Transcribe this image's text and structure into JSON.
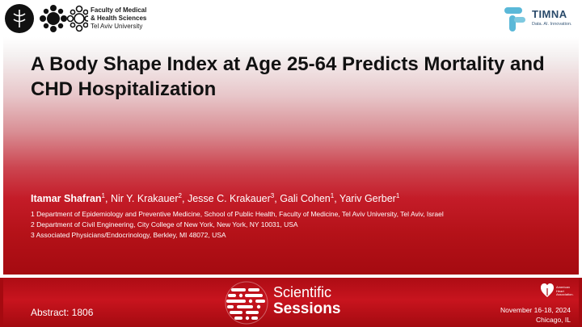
{
  "header": {
    "university_lines": [
      "Faculty of Medical",
      "& Health Sciences",
      "Tel Aviv University"
    ],
    "sponsor": {
      "name": "TIMNA",
      "tagline": "Data. AI. Innovation."
    }
  },
  "title": "A Body Shape Index at Age 25-64 Predicts Mortality and CHD Hospitalization",
  "authors": [
    {
      "name": "Itamar Shafran",
      "sup": "1",
      "bold": true
    },
    {
      "name": "Nir Y. Krakauer",
      "sup": "2",
      "bold": false
    },
    {
      "name": "Jesse C. Krakauer",
      "sup": "3",
      "bold": false
    },
    {
      "name": "Gali Cohen",
      "sup": "1",
      "bold": false
    },
    {
      "name": "Yariv Gerber",
      "sup": "1",
      "bold": false
    }
  ],
  "affiliations": [
    "1 Department of Epidemiology and Preventive Medicine, School of Public Health, Faculty of Medicine, Tel Aviv University, Tel Aviv, Israel",
    "2 Department of Civil Engineering, City College of New York, New York, NY 10031, USA",
    "3 Associated Physicians/Endocrinology, Berkley, MI 48072, USA"
  ],
  "footer": {
    "abstract": "Abstract: 1806",
    "event_line1": "Scientific",
    "event_line2": "Sessions",
    "aha_lines": [
      "American",
      "Heart",
      "Association."
    ],
    "date": "November 16-18, 2024",
    "location": "Chicago, IL"
  },
  "colors": {
    "primary_red": "#c41c28",
    "dark_red": "#a50a10",
    "timna_blue": "#2a4a6a",
    "timna_accent": "#5ab8d8"
  }
}
